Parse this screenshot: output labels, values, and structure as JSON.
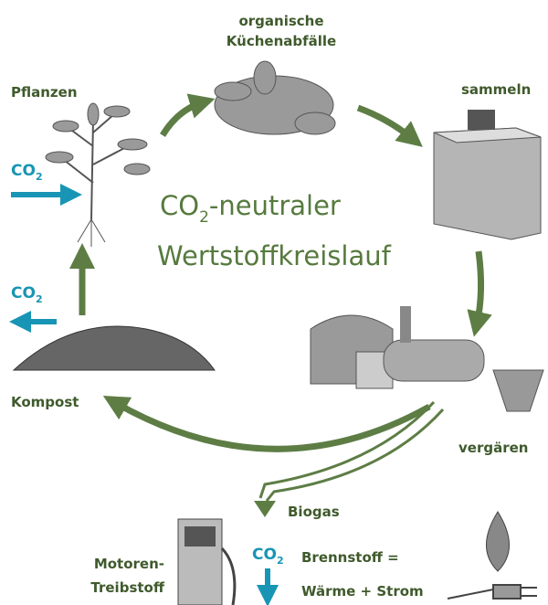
{
  "title": {
    "line1": {
      "main": "CO",
      "sub": "2",
      "rest": "-neutraler"
    },
    "line2": "Wertstoffkreislauf"
  },
  "labels": {
    "waste": [
      "organische",
      "Küchenabfälle"
    ],
    "plants": "Pflanzen",
    "collect": "sammeln",
    "compost": "Kompost",
    "ferment": "vergären",
    "biogas": "Biogas",
    "fuel": [
      "Motoren-",
      "Treibstoff"
    ],
    "energy": [
      "Brennstoff =",
      "Wärme + Strom"
    ]
  },
  "co2": {
    "plants_in": {
      "main": "CO",
      "sub": "2"
    },
    "compost_out": {
      "main": "CO",
      "sub": "2"
    },
    "energy_out": {
      "main": "CO",
      "sub": "2"
    }
  }
}
